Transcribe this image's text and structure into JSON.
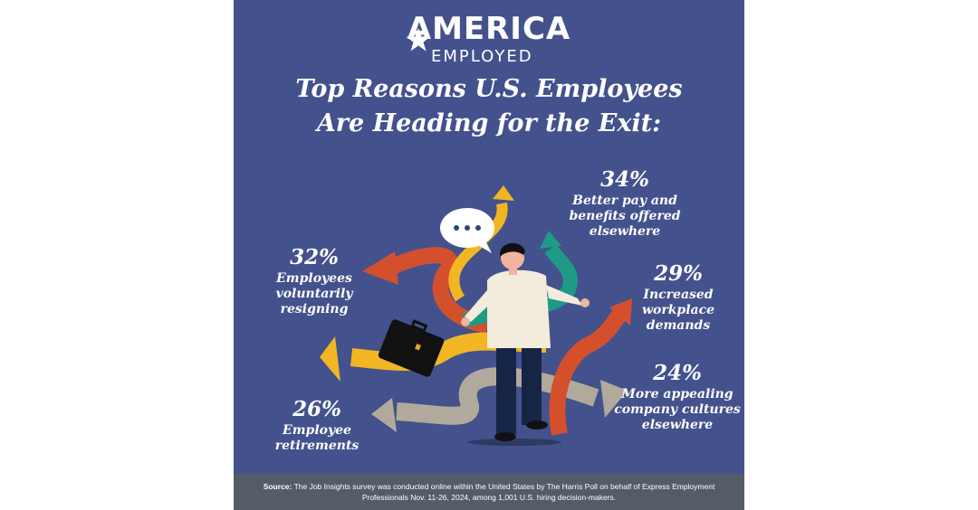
{
  "logo": {
    "line1": "AMERICA",
    "line2": "EMPLOYED"
  },
  "title": {
    "line1": "Top Reasons U.S. Employees",
    "line2": "Are Heading for the Exit:"
  },
  "colors": {
    "background": "#43528d",
    "footer": "#545c67",
    "orange": "#d4502d",
    "yellow": "#f2b523",
    "teal": "#1f9a86",
    "taupe": "#b1a99b"
  },
  "chart_data": {
    "type": "table",
    "title": "Top Reasons U.S. Employees Are Heading for the Exit:",
    "categories": [
      "Better pay and benefits offered elsewhere",
      "Employees voluntarily resigning",
      "Increased workplace demands",
      "Employee retirements",
      "More appealing company cultures elsewhere"
    ],
    "values": [
      34,
      32,
      29,
      26,
      24
    ],
    "unit": "%",
    "items": [
      {
        "pct": "34%",
        "line1": "Better pay and",
        "line2": "benefits offered",
        "line3": "elsewhere"
      },
      {
        "pct": "32%",
        "line1": "Employees",
        "line2": "voluntarily",
        "line3": "resigning"
      },
      {
        "pct": "29%",
        "line1": "Increased",
        "line2": "workplace",
        "line3": "demands"
      },
      {
        "pct": "26%",
        "line1": "Employee",
        "line2": "retirements",
        "line3": ""
      },
      {
        "pct": "24%",
        "line1": "More appealing",
        "line2": "company cultures",
        "line3": "elsewhere"
      }
    ]
  },
  "footer": {
    "source_label": "Source:",
    "source_text": "The Job Insights survey was conducted online within the United States by The Harris Poll on behalf of Express Employment Professionals Nov. 11-26, 2024, among 1,001 U.S. hiring decision-makers."
  }
}
